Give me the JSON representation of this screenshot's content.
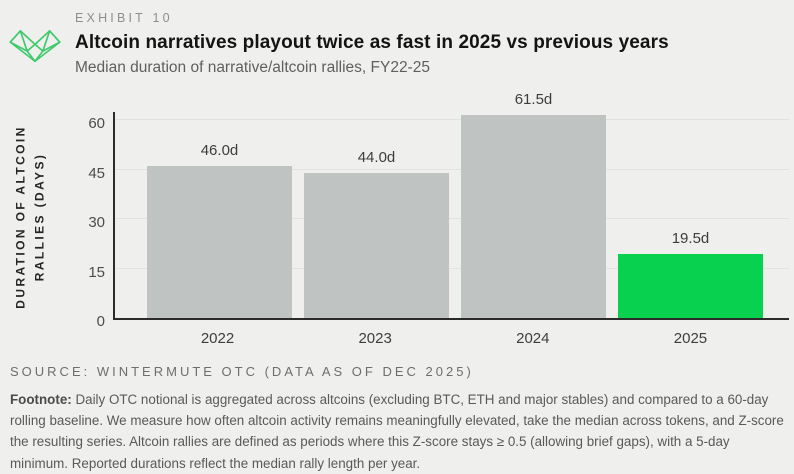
{
  "header": {
    "exhibit_label": "EXHIBIT 10",
    "title": "Altcoin narratives playout twice as fast in 2025 vs previous years",
    "subtitle": "Median duration of narrative/altcoin rallies, FY22-25",
    "logo_color": "#41c96b"
  },
  "chart_data": {
    "type": "bar",
    "categories": [
      "2022",
      "2023",
      "2024",
      "2025"
    ],
    "values": [
      46.0,
      44.0,
      61.5,
      19.5
    ],
    "value_labels": [
      "46.0d",
      "44.0d",
      "61.5d",
      "19.5d"
    ],
    "bar_colors": [
      "#bfc3c1",
      "#bfc3c1",
      "#bfc3c1",
      "#07d14f"
    ],
    "title": "Altcoin narratives playout twice as fast in 2025 vs previous years",
    "subtitle": "Median duration of narrative/altcoin rallies, FY22-25",
    "xlabel": "",
    "ylabel": "DURATION OF ALTCOIN\nRALLIES (DAYS)",
    "yticks": [
      0,
      15,
      30,
      45,
      60
    ],
    "ylim": [
      0,
      63
    ],
    "grid": "horizontal",
    "gridline_values": [
      15,
      30,
      45,
      60
    ],
    "legend": "none"
  },
  "source": {
    "label": "SOURCE: WINTERMUTE OTC (DATA AS OF DEC 2025)"
  },
  "footnote": {
    "label": "Footnote:",
    "text": " Daily OTC notional is aggregated across altcoins (excluding BTC, ETH and major stables) and compared to a 60-day rolling baseline. We measure how often altcoin activity remains meaningfully elevated, take the median across tokens, and Z-score the resulting series. Altcoin rallies are defined as periods where this Z-score stays ≥ 0.5 (allowing brief gaps), with a 5-day minimum. Reported durations reflect the median rally length per year."
  }
}
